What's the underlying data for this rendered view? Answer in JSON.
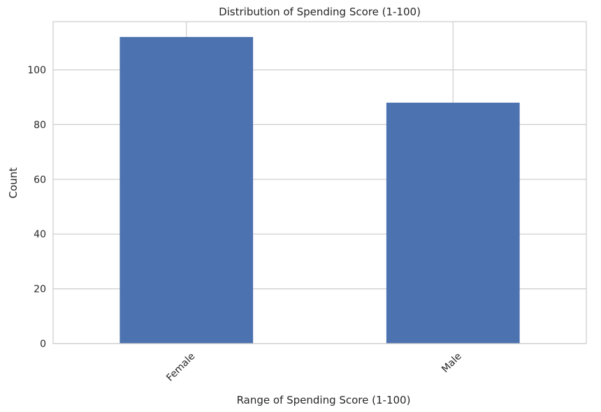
{
  "chart_data": {
    "type": "bar",
    "title": "Distribution of Spending Score (1-100)",
    "xlabel": "Range of Spending Score (1-100)",
    "ylabel": "Count",
    "categories": [
      "Female",
      "Male"
    ],
    "values": [
      112,
      88
    ],
    "ylim": [
      0,
      117.6
    ],
    "yticks": [
      0,
      20,
      40,
      60,
      80,
      100
    ],
    "bar_color": "#4c72b0",
    "grid": true,
    "x_tick_rotation": -45
  }
}
